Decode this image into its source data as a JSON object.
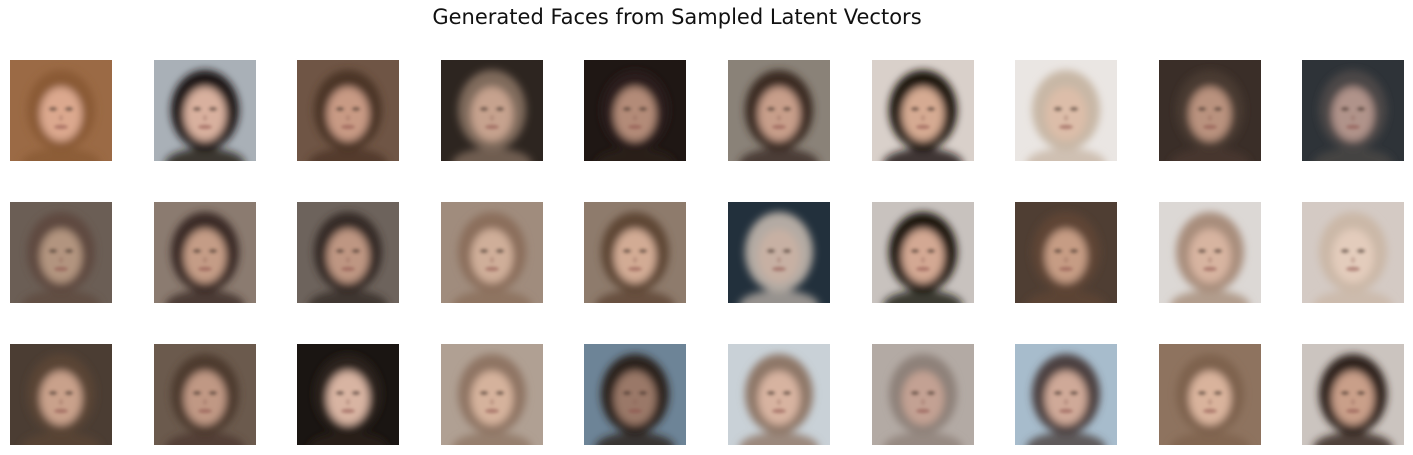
{
  "figure": {
    "title": "Generated Faces from Sampled Latent Vectors",
    "rows": 3,
    "cols": 10
  },
  "faces": [
    {
      "bg": "#9b6a45",
      "hair": "#8a5a35",
      "skin": "#dba88e"
    },
    {
      "bg": "#a9b0b7",
      "hair": "#1e1714",
      "skin": "#d8b09e"
    },
    {
      "bg": "#6f5545",
      "hair": "#4c3628",
      "skin": "#c89a84"
    },
    {
      "bg": "#2d2520",
      "hair": "#7f6b5c",
      "skin": "#c6a28e"
    },
    {
      "bg": "#1f1714",
      "hair": "#2a1f1a",
      "skin": "#b38b78"
    },
    {
      "bg": "#8a8278",
      "hair": "#3b2b24",
      "skin": "#c79e8a"
    },
    {
      "bg": "#d9d0ca",
      "hair": "#1c1410",
      "skin": "#d5aa92"
    },
    {
      "bg": "#eae6e3",
      "hair": "#c8b7a6",
      "skin": "#dcbda9"
    },
    {
      "bg": "#3a2e28",
      "hair": "#4a3a30",
      "skin": "#b9927e"
    },
    {
      "bg": "#2e3338",
      "hair": "#4b4746",
      "skin": "#b0938a"
    },
    {
      "bg": "#6b5e55",
      "hair": "#5e4a3f",
      "skin": "#b2947f"
    },
    {
      "bg": "#8b7b70",
      "hair": "#3b2c25",
      "skin": "#c49c86"
    },
    {
      "bg": "#6d635c",
      "hair": "#362a25",
      "skin": "#be9682"
    },
    {
      "bg": "#a08c7d",
      "hair": "#8b6e5b",
      "skin": "#cfae99"
    },
    {
      "bg": "#8e7b6c",
      "hair": "#5e4636",
      "skin": "#d2ab94"
    },
    {
      "bg": "#22303c",
      "hair": "#b3aaa3",
      "skin": "#c7b0a3"
    },
    {
      "bg": "#c8c2be",
      "hair": "#1b1511",
      "skin": "#d3a893"
    },
    {
      "bg": "#4f3e33",
      "hair": "#5e4535",
      "skin": "#c69c84"
    },
    {
      "bg": "#dcd8d5",
      "hair": "#a88d7b",
      "skin": "#d7b4a0"
    },
    {
      "bg": "#d4cac4",
      "hair": "#cbb8a7",
      "skin": "#e3ccbc"
    },
    {
      "bg": "#4b3d33",
      "hair": "#5a4536",
      "skin": "#c9a18b"
    },
    {
      "bg": "#6b5a4d",
      "hair": "#4d3a2e",
      "skin": "#c09884"
    },
    {
      "bg": "#1a1512",
      "hair": "#2a201a",
      "skin": "#d8b4a2"
    },
    {
      "bg": "#b0a093",
      "hair": "#8f7564",
      "skin": "#d5b29c"
    },
    {
      "bg": "#6d8497",
      "hair": "#2a201d",
      "skin": "#9a7868"
    },
    {
      "bg": "#c9d1d7",
      "hair": "#8e7767",
      "skin": "#d7b3a0"
    },
    {
      "bg": "#b3aaa4",
      "hair": "#8e8179",
      "skin": "#c3a193"
    },
    {
      "bg": "#a7bccc",
      "hair": "#4c4140",
      "skin": "#cfa998"
    },
    {
      "bg": "#8e735f",
      "hair": "#7e624e",
      "skin": "#d9b39c"
    },
    {
      "bg": "#cbc4bf",
      "hair": "#2e221c",
      "skin": "#c99f89"
    }
  ]
}
